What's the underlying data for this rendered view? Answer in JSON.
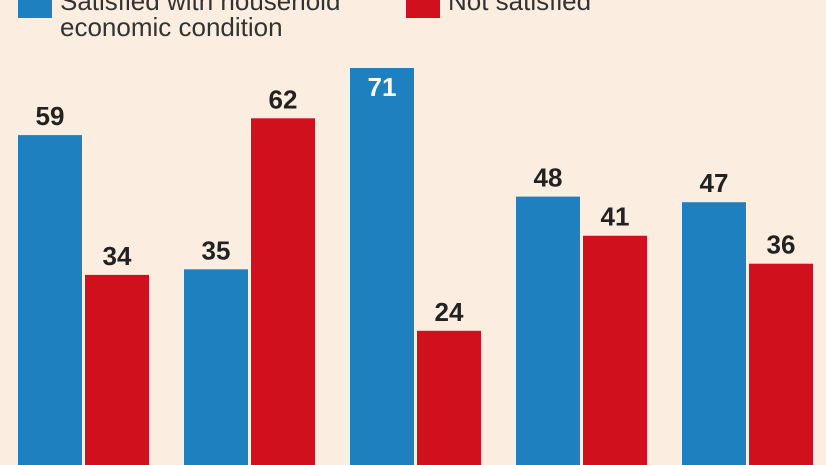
{
  "colors": {
    "background": "#fbeee0",
    "blue": "#1f80c0",
    "red": "#d0101c",
    "label_dark": "#222222",
    "label_light": "#ffffff"
  },
  "legend": [
    {
      "label": "Satisfied with household",
      "label_line2": "economic condition",
      "color": "#1f80c0"
    },
    {
      "label": "Not satisfied",
      "label_line2": "",
      "color": "#d0101c"
    }
  ],
  "chart_data": {
    "type": "bar",
    "title": "",
    "xlabel": "",
    "ylabel": "",
    "ylim": [
      0,
      75
    ],
    "grid": false,
    "legend_position": "top",
    "categories": [
      "",
      "",
      "",
      "",
      ""
    ],
    "series": [
      {
        "name": "Satisfied with household economic condition",
        "color": "#1f80c0",
        "values": [
          59,
          35,
          71,
          48,
          47
        ]
      },
      {
        "name": "Not satisfied",
        "color": "#d0101c",
        "values": [
          34,
          62,
          24,
          41,
          36
        ]
      }
    ],
    "label_inside": [
      false,
      false,
      true,
      false,
      false
    ]
  }
}
